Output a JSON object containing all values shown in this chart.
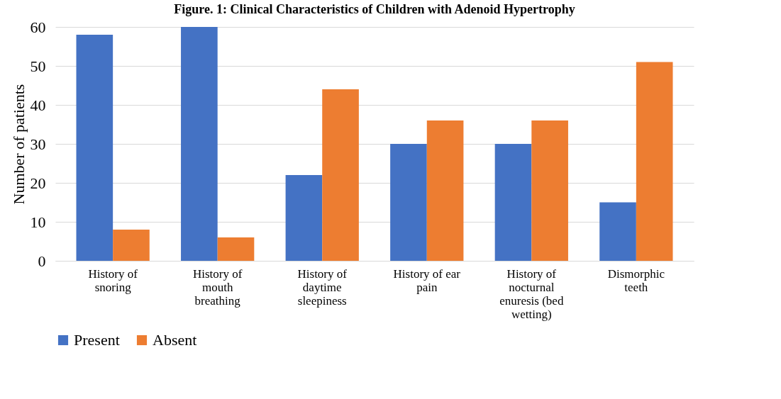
{
  "chart_data": {
    "type": "bar",
    "title": "Figure. 1: Clinical Characteristics of Children with Adenoid Hypertrophy",
    "ylabel": "Number of patients",
    "categories": [
      "History of snoring",
      "History of mouth breathing",
      "History of daytime sleepiness",
      "History of ear pain",
      "History of nocturnal enuresis (bed wetting)",
      "Dismorphic teeth"
    ],
    "series": [
      {
        "name": "Present",
        "color": "#4472c4",
        "values": [
          58,
          60,
          22,
          30,
          30,
          15
        ]
      },
      {
        "name": "Absent",
        "color": "#ed7d31",
        "values": [
          8,
          6,
          44,
          36,
          36,
          51
        ]
      }
    ],
    "ylim": [
      0,
      60
    ],
    "yticks": [
      0,
      10,
      20,
      30,
      40,
      50,
      60
    ],
    "grid": "y",
    "legend": "bottom"
  }
}
